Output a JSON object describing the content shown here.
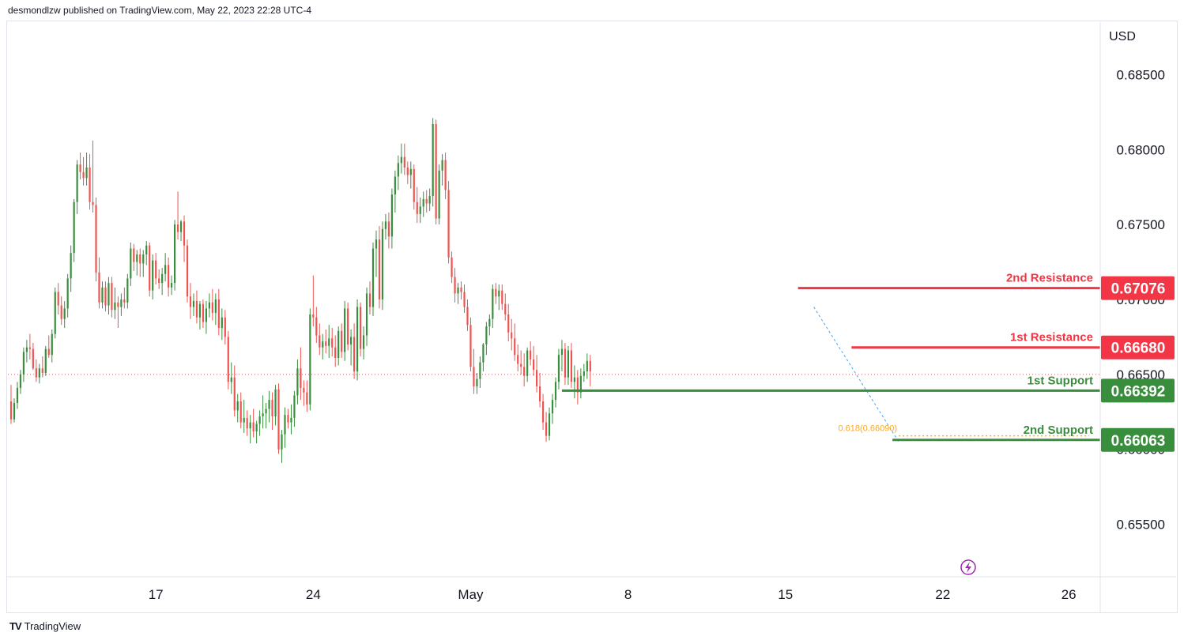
{
  "header": {
    "attribution": "desmondlzw published on TradingView.com, May 22, 2023 22:28 UTC-4"
  },
  "footer": {
    "brand": "TradingView",
    "logo": "TV"
  },
  "colors": {
    "bull": "#388e3c",
    "bear": "#ef5350",
    "resistance": "#f23645",
    "support": "#388e3c",
    "fib": "#f9a825",
    "grid": "#e0e3eb",
    "current_price": "#ef5350",
    "lightning": "#9c27b0"
  },
  "chart_data": {
    "type": "candlestick",
    "currency": "USD",
    "y_ticks": [
      "0.68500",
      "0.68000",
      "0.67500",
      "0.67000",
      "0.66500",
      "0.66000",
      "0.65500"
    ],
    "y_tick_values": [
      0.685,
      0.68,
      0.675,
      0.67,
      0.665,
      0.66,
      0.655
    ],
    "ylim": [
      0.6515,
      0.6885
    ],
    "x_ticks": [
      {
        "label": "17",
        "index": 46
      },
      {
        "label": "24",
        "index": 96
      },
      {
        "label": "May",
        "index": 146
      },
      {
        "label": "8",
        "index": 196
      },
      {
        "label": "15",
        "index": 246
      },
      {
        "label": "22",
        "index": 296
      },
      {
        "label": "26",
        "index": 336
      }
    ],
    "x_index_range": [
      -1,
      346
    ],
    "current_price": 0.665,
    "levels": [
      {
        "name": "2nd Resistance",
        "value": 0.67076,
        "value_label": "0.67076",
        "kind": "resistance",
        "start_index": 250
      },
      {
        "name": "1st Resistance",
        "value": 0.6668,
        "value_label": "0.66680",
        "kind": "resistance",
        "start_index": 267
      },
      {
        "name": "1st Support",
        "value": 0.66392,
        "value_label": "0.66392",
        "kind": "support",
        "start_index": 175
      },
      {
        "name": "2nd Support",
        "value": 0.66063,
        "value_label": "0.66063",
        "kind": "support",
        "start_index": 280
      }
    ],
    "fib": {
      "label": "0.618(0.66090)",
      "value": 0.6609,
      "start_index": 282
    },
    "candles": [
      [
        0.6632,
        0.6643,
        0.6617,
        0.662
      ],
      [
        0.662,
        0.6634,
        0.6618,
        0.6631
      ],
      [
        0.6631,
        0.6645,
        0.6627,
        0.6641
      ],
      [
        0.6641,
        0.6653,
        0.6637,
        0.665
      ],
      [
        0.665,
        0.6668,
        0.6645,
        0.6665
      ],
      [
        0.6665,
        0.6673,
        0.6658,
        0.6668
      ],
      [
        0.6668,
        0.6677,
        0.666,
        0.6667
      ],
      [
        0.6667,
        0.6671,
        0.6653,
        0.6654
      ],
      [
        0.6654,
        0.666,
        0.6645,
        0.6648
      ],
      [
        0.6648,
        0.6657,
        0.6644,
        0.6654
      ],
      [
        0.6654,
        0.6662,
        0.6648,
        0.6651
      ],
      [
        0.6651,
        0.6669,
        0.6649,
        0.6667
      ],
      [
        0.6667,
        0.6676,
        0.6661,
        0.6663
      ],
      [
        0.6663,
        0.668,
        0.6658,
        0.6677
      ],
      [
        0.6677,
        0.6708,
        0.6674,
        0.6705
      ],
      [
        0.6705,
        0.6711,
        0.669,
        0.6696
      ],
      [
        0.6696,
        0.6702,
        0.6683,
        0.6687
      ],
      [
        0.6687,
        0.6699,
        0.6681,
        0.6694
      ],
      [
        0.6694,
        0.6717,
        0.6688,
        0.6714
      ],
      [
        0.6714,
        0.6736,
        0.6705,
        0.6731
      ],
      [
        0.6731,
        0.6767,
        0.6725,
        0.6765
      ],
      [
        0.6765,
        0.6793,
        0.6757,
        0.679
      ],
      [
        0.679,
        0.6798,
        0.678,
        0.6785
      ],
      [
        0.6785,
        0.6795,
        0.6776,
        0.6781
      ],
      [
        0.6781,
        0.6798,
        0.6776,
        0.6788
      ],
      [
        0.6788,
        0.6797,
        0.676,
        0.6765
      ],
      [
        0.6765,
        0.6806,
        0.6758,
        0.6763
      ],
      [
        0.6763,
        0.6768,
        0.6712,
        0.6718
      ],
      [
        0.6718,
        0.6728,
        0.6694,
        0.6698
      ],
      [
        0.6698,
        0.6712,
        0.6694,
        0.6708
      ],
      [
        0.6708,
        0.6712,
        0.6692,
        0.6696
      ],
      [
        0.6696,
        0.6715,
        0.669,
        0.6711
      ],
      [
        0.6711,
        0.6715,
        0.6688,
        0.6693
      ],
      [
        0.6693,
        0.6708,
        0.6687,
        0.6698
      ],
      [
        0.6698,
        0.6702,
        0.6681,
        0.6695
      ],
      [
        0.6695,
        0.6704,
        0.6689,
        0.67
      ],
      [
        0.67,
        0.6708,
        0.6694,
        0.6698
      ],
      [
        0.6698,
        0.6717,
        0.6694,
        0.6714
      ],
      [
        0.6714,
        0.6738,
        0.6709,
        0.6734
      ],
      [
        0.6734,
        0.6737,
        0.6719,
        0.6725
      ],
      [
        0.6725,
        0.6733,
        0.6716,
        0.673
      ],
      [
        0.673,
        0.6734,
        0.6715,
        0.6724
      ],
      [
        0.6724,
        0.6733,
        0.6715,
        0.673
      ],
      [
        0.673,
        0.6739,
        0.6723,
        0.6736
      ],
      [
        0.6736,
        0.6738,
        0.6702,
        0.6706
      ],
      [
        0.6706,
        0.673,
        0.67,
        0.6726
      ],
      [
        0.6726,
        0.6731,
        0.671,
        0.6714
      ],
      [
        0.6714,
        0.672,
        0.6707,
        0.6711
      ],
      [
        0.6711,
        0.6721,
        0.6703,
        0.6717
      ],
      [
        0.6717,
        0.6731,
        0.6712,
        0.6723
      ],
      [
        0.6723,
        0.6728,
        0.6702,
        0.6708
      ],
      [
        0.6708,
        0.6716,
        0.6703,
        0.6711
      ],
      [
        0.6711,
        0.6753,
        0.6706,
        0.675
      ],
      [
        0.675,
        0.6772,
        0.674,
        0.6745
      ],
      [
        0.6745,
        0.6753,
        0.6739,
        0.6752
      ],
      [
        0.6752,
        0.6756,
        0.6725,
        0.6736
      ],
      [
        0.6736,
        0.674,
        0.6698,
        0.6702
      ],
      [
        0.6702,
        0.6711,
        0.6687,
        0.6695
      ],
      [
        0.6695,
        0.6704,
        0.6689,
        0.6699
      ],
      [
        0.6699,
        0.6706,
        0.6684,
        0.6688
      ],
      [
        0.6688,
        0.6699,
        0.668,
        0.6697
      ],
      [
        0.6697,
        0.67,
        0.6681,
        0.6685
      ],
      [
        0.6685,
        0.6699,
        0.6677,
        0.6694
      ],
      [
        0.6694,
        0.6704,
        0.6688,
        0.6698
      ],
      [
        0.6698,
        0.6707,
        0.6686,
        0.6691
      ],
      [
        0.6691,
        0.6704,
        0.6683,
        0.67
      ],
      [
        0.67,
        0.6707,
        0.6676,
        0.6681
      ],
      [
        0.6681,
        0.6694,
        0.6673,
        0.6688
      ],
      [
        0.6688,
        0.6693,
        0.667,
        0.6675
      ],
      [
        0.6675,
        0.6679,
        0.664,
        0.6645
      ],
      [
        0.6645,
        0.6658,
        0.6637,
        0.6648
      ],
      [
        0.6648,
        0.6656,
        0.6622,
        0.6626
      ],
      [
        0.6626,
        0.6637,
        0.6618,
        0.6632
      ],
      [
        0.6632,
        0.6638,
        0.6614,
        0.6618
      ],
      [
        0.6618,
        0.6633,
        0.6611,
        0.6621
      ],
      [
        0.6621,
        0.6626,
        0.6609,
        0.6614
      ],
      [
        0.6614,
        0.6623,
        0.6604,
        0.6618
      ],
      [
        0.6618,
        0.6627,
        0.6608,
        0.6612
      ],
      [
        0.6612,
        0.6619,
        0.6604,
        0.6617
      ],
      [
        0.6617,
        0.6626,
        0.6609,
        0.6622
      ],
      [
        0.6622,
        0.6636,
        0.6614,
        0.6624
      ],
      [
        0.6624,
        0.6631,
        0.6614,
        0.6627
      ],
      [
        0.6627,
        0.6639,
        0.6618,
        0.6633
      ],
      [
        0.6633,
        0.6638,
        0.6613,
        0.6622
      ],
      [
        0.6622,
        0.6643,
        0.6616,
        0.664
      ],
      [
        0.664,
        0.6644,
        0.6597,
        0.66
      ],
      [
        0.66,
        0.6613,
        0.6591,
        0.661
      ],
      [
        0.661,
        0.6628,
        0.6601,
        0.6623
      ],
      [
        0.6623,
        0.6627,
        0.6614,
        0.6618
      ],
      [
        0.6618,
        0.663,
        0.661,
        0.6621
      ],
      [
        0.6621,
        0.6639,
        0.6615,
        0.6636
      ],
      [
        0.6636,
        0.666,
        0.663,
        0.6654
      ],
      [
        0.6654,
        0.6668,
        0.6633,
        0.6641
      ],
      [
        0.6641,
        0.6646,
        0.6629,
        0.6638
      ],
      [
        0.6638,
        0.6646,
        0.6625,
        0.663
      ],
      [
        0.663,
        0.6694,
        0.6626,
        0.669
      ],
      [
        0.669,
        0.6716,
        0.6682,
        0.6688
      ],
      [
        0.6688,
        0.6695,
        0.6671,
        0.6676
      ],
      [
        0.6676,
        0.6684,
        0.6663,
        0.6668
      ],
      [
        0.6668,
        0.6677,
        0.666,
        0.6672
      ],
      [
        0.6672,
        0.668,
        0.6664,
        0.6669
      ],
      [
        0.6669,
        0.6683,
        0.6661,
        0.6674
      ],
      [
        0.6674,
        0.6681,
        0.6662,
        0.6668
      ],
      [
        0.6668,
        0.6676,
        0.6655,
        0.6661
      ],
      [
        0.6661,
        0.6682,
        0.6656,
        0.6679
      ],
      [
        0.6679,
        0.6684,
        0.6661,
        0.6665
      ],
      [
        0.6665,
        0.6699,
        0.6659,
        0.6694
      ],
      [
        0.6694,
        0.6698,
        0.6666,
        0.667
      ],
      [
        0.667,
        0.668,
        0.6656,
        0.6675
      ],
      [
        0.6675,
        0.6684,
        0.6647,
        0.6652
      ],
      [
        0.6652,
        0.67,
        0.6646,
        0.6695
      ],
      [
        0.6695,
        0.6698,
        0.6662,
        0.6667
      ],
      [
        0.6667,
        0.6682,
        0.666,
        0.6676
      ],
      [
        0.6676,
        0.6708,
        0.6669,
        0.6704
      ],
      [
        0.6704,
        0.6712,
        0.669,
        0.6695
      ],
      [
        0.6695,
        0.6738,
        0.6689,
        0.6734
      ],
      [
        0.6734,
        0.6746,
        0.6715,
        0.674
      ],
      [
        0.674,
        0.6749,
        0.6694,
        0.67
      ],
      [
        0.67,
        0.6752,
        0.6693,
        0.6747
      ],
      [
        0.6747,
        0.6757,
        0.674,
        0.6752
      ],
      [
        0.6752,
        0.6758,
        0.6734,
        0.6742
      ],
      [
        0.6742,
        0.6774,
        0.6734,
        0.677
      ],
      [
        0.677,
        0.6786,
        0.6758,
        0.6782
      ],
      [
        0.6782,
        0.6796,
        0.6773,
        0.6791
      ],
      [
        0.6791,
        0.6804,
        0.6784,
        0.6795
      ],
      [
        0.6795,
        0.6804,
        0.6783,
        0.6788
      ],
      [
        0.6788,
        0.6792,
        0.6777,
        0.6783
      ],
      [
        0.6783,
        0.6792,
        0.6774,
        0.6787
      ],
      [
        0.6787,
        0.679,
        0.676,
        0.6765
      ],
      [
        0.6765,
        0.6775,
        0.6751,
        0.6757
      ],
      [
        0.6757,
        0.6768,
        0.6751,
        0.6762
      ],
      [
        0.6762,
        0.6772,
        0.6755,
        0.6767
      ],
      [
        0.6767,
        0.6773,
        0.6758,
        0.6764
      ],
      [
        0.6764,
        0.6774,
        0.6759,
        0.6769
      ],
      [
        0.6769,
        0.6821,
        0.6762,
        0.6817
      ],
      [
        0.6817,
        0.682,
        0.675,
        0.6754
      ],
      [
        0.6754,
        0.679,
        0.675,
        0.6786
      ],
      [
        0.6786,
        0.6797,
        0.6776,
        0.6793
      ],
      [
        0.6793,
        0.6798,
        0.6767,
        0.6773
      ],
      [
        0.6773,
        0.6779,
        0.6724,
        0.6728
      ],
      [
        0.6728,
        0.6732,
        0.6711,
        0.6715
      ],
      [
        0.6715,
        0.6721,
        0.6698,
        0.6704
      ],
      [
        0.6704,
        0.6711,
        0.6697,
        0.6708
      ],
      [
        0.6708,
        0.6712,
        0.67,
        0.6705
      ],
      [
        0.6705,
        0.671,
        0.6691,
        0.6695
      ],
      [
        0.6695,
        0.67,
        0.6679,
        0.6683
      ],
      [
        0.6683,
        0.6688,
        0.6652,
        0.6655
      ],
      [
        0.6655,
        0.6667,
        0.6637,
        0.6642
      ],
      [
        0.6642,
        0.6651,
        0.6637,
        0.6647
      ],
      [
        0.6647,
        0.6662,
        0.6641,
        0.6658
      ],
      [
        0.6658,
        0.6671,
        0.6652,
        0.667
      ],
      [
        0.667,
        0.6685,
        0.6663,
        0.6682
      ],
      [
        0.6682,
        0.669,
        0.6676,
        0.6687
      ],
      [
        0.6687,
        0.671,
        0.6681,
        0.6707
      ],
      [
        0.6707,
        0.6711,
        0.6697,
        0.6702
      ],
      [
        0.6702,
        0.671,
        0.6693,
        0.6706
      ],
      [
        0.6706,
        0.671,
        0.6693,
        0.6697
      ],
      [
        0.6697,
        0.6704,
        0.6686,
        0.669
      ],
      [
        0.669,
        0.6697,
        0.6672,
        0.6678
      ],
      [
        0.6678,
        0.6687,
        0.6666,
        0.6674
      ],
      [
        0.6674,
        0.6684,
        0.6659,
        0.6663
      ],
      [
        0.6663,
        0.667,
        0.6652,
        0.6657
      ],
      [
        0.6657,
        0.6666,
        0.665,
        0.6655
      ],
      [
        0.6655,
        0.6664,
        0.6642,
        0.6649
      ],
      [
        0.6649,
        0.6668,
        0.6645,
        0.6666
      ],
      [
        0.6666,
        0.6672,
        0.6656,
        0.666
      ],
      [
        0.666,
        0.6669,
        0.6649,
        0.6653
      ],
      [
        0.6653,
        0.6663,
        0.6638,
        0.6642
      ],
      [
        0.6642,
        0.6651,
        0.6628,
        0.6632
      ],
      [
        0.6632,
        0.6637,
        0.6613,
        0.6618
      ],
      [
        0.6618,
        0.6625,
        0.6605,
        0.6609
      ],
      [
        0.6609,
        0.6628,
        0.6606,
        0.6624
      ],
      [
        0.6624,
        0.6637,
        0.6617,
        0.6633
      ],
      [
        0.6633,
        0.6648,
        0.6628,
        0.6645
      ],
      [
        0.6645,
        0.6667,
        0.664,
        0.6663
      ],
      [
        0.6663,
        0.6673,
        0.6652,
        0.6667
      ],
      [
        0.6667,
        0.6671,
        0.6643,
        0.6648
      ],
      [
        0.6648,
        0.6669,
        0.6643,
        0.6666
      ],
      [
        0.6666,
        0.6671,
        0.6641,
        0.6645
      ],
      [
        0.6645,
        0.6656,
        0.6634,
        0.6648
      ],
      [
        0.6648,
        0.6653,
        0.663,
        0.6638
      ],
      [
        0.6638,
        0.6654,
        0.6634,
        0.6649
      ],
      [
        0.6649,
        0.6657,
        0.6645,
        0.6652
      ],
      [
        0.6652,
        0.6664,
        0.6647,
        0.6659
      ],
      [
        0.6659,
        0.6663,
        0.6642,
        0.6652
      ]
    ]
  }
}
